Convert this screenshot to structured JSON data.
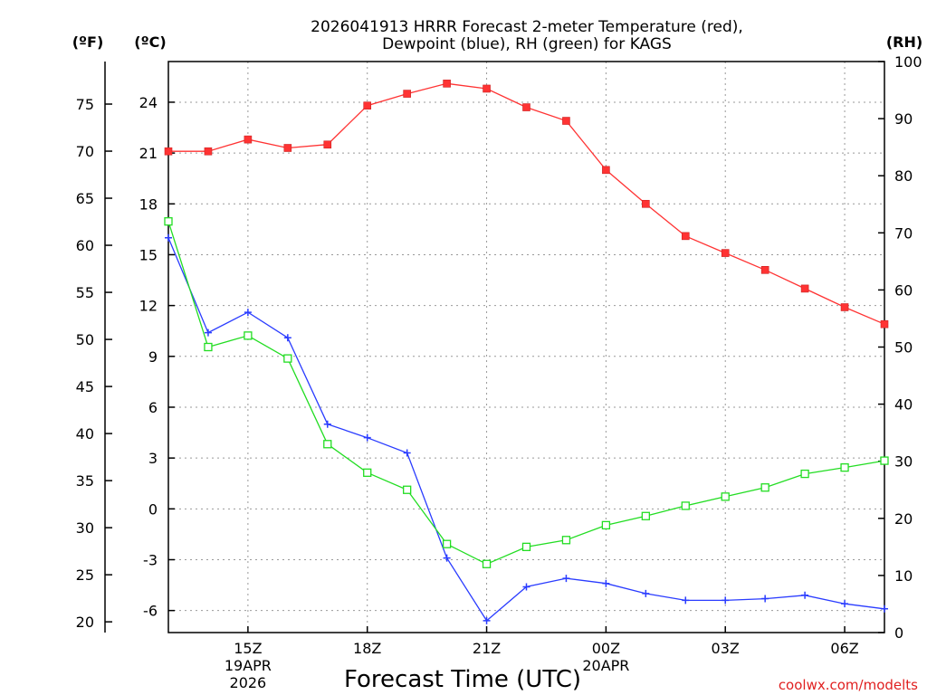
{
  "chart_data": {
    "type": "line",
    "title_line1": "2026041913 HRRR Forecast 2-meter Temperature (red),",
    "title_line2": "Dewpoint (blue), RH (green) for KAGS",
    "xlabel": "Forecast Time (UTC)",
    "credit": "coolwx.com/modelts",
    "units": {
      "fahrenheit": "(ºF)",
      "celsius": "(ºC)",
      "rh": "(RH)"
    },
    "celsius_axis": {
      "range": [
        -7.3,
        26.4
      ],
      "ticks": [
        -6,
        -3,
        0,
        3,
        6,
        9,
        12,
        15,
        18,
        21,
        24
      ],
      "tick_labels": [
        "-6",
        "-3",
        "0",
        "3",
        "6",
        "9",
        "12",
        "15",
        "18",
        "21",
        "24"
      ]
    },
    "fahrenheit_axis": {
      "ticks": [
        20,
        25,
        30,
        35,
        40,
        45,
        50,
        55,
        60,
        65,
        70,
        75
      ],
      "tick_labels": [
        "20",
        "25",
        "30",
        "35",
        "40",
        "45",
        "50",
        "55",
        "60",
        "65",
        "70",
        "75"
      ]
    },
    "rh_axis": {
      "range": [
        0,
        100
      ],
      "ticks": [
        0,
        10,
        20,
        30,
        40,
        50,
        60,
        70,
        80,
        90,
        100
      ],
      "tick_labels": [
        "0",
        "10",
        "20",
        "30",
        "40",
        "50",
        "60",
        "70",
        "80",
        "90",
        "100"
      ]
    },
    "x_range_hours": [
      13,
      31
    ],
    "x_ticks": [
      {
        "hour": 15,
        "label": "15Z",
        "date": "19APR",
        "year": "2026"
      },
      {
        "hour": 18,
        "label": "18Z",
        "date": "",
        "year": ""
      },
      {
        "hour": 21,
        "label": "21Z",
        "date": "",
        "year": ""
      },
      {
        "hour": 24,
        "label": "00Z",
        "date": "20APR",
        "year": ""
      },
      {
        "hour": 27,
        "label": "03Z",
        "date": "",
        "year": ""
      },
      {
        "hour": 30,
        "label": "06Z",
        "date": "",
        "year": ""
      }
    ],
    "hours": [
      13,
      14,
      15,
      16,
      17,
      18,
      19,
      20,
      21,
      22,
      23,
      24,
      25,
      26,
      27,
      28,
      29,
      30,
      31
    ],
    "series": [
      {
        "name": "Temperature",
        "axis": "celsius",
        "color": "#ff3333",
        "marker": "filled-square",
        "values": [
          21.1,
          21.1,
          21.8,
          21.3,
          21.5,
          23.8,
          24.5,
          25.1,
          24.8,
          23.7,
          22.9,
          20.0,
          18.0,
          16.1,
          15.1,
          14.1,
          13.0,
          11.9,
          10.9
        ]
      },
      {
        "name": "Dewpoint",
        "axis": "celsius",
        "color": "#2a3cff",
        "marker": "plus",
        "values": [
          16.0,
          10.4,
          11.6,
          10.1,
          5.0,
          4.2,
          3.3,
          -2.9,
          -6.6,
          -4.6,
          -4.1,
          -4.4,
          -5.0,
          -5.4,
          -5.4,
          -5.3,
          -5.1,
          -5.6,
          -5.9
        ]
      },
      {
        "name": "RH",
        "axis": "rh",
        "color": "#22dd22",
        "marker": "open-square",
        "values": [
          72,
          50,
          52,
          48,
          33,
          28,
          25,
          15.5,
          12,
          15,
          16.2,
          18.8,
          20.4,
          22.2,
          23.8,
          25.4,
          27.8,
          28.9,
          30.1
        ]
      }
    ]
  }
}
